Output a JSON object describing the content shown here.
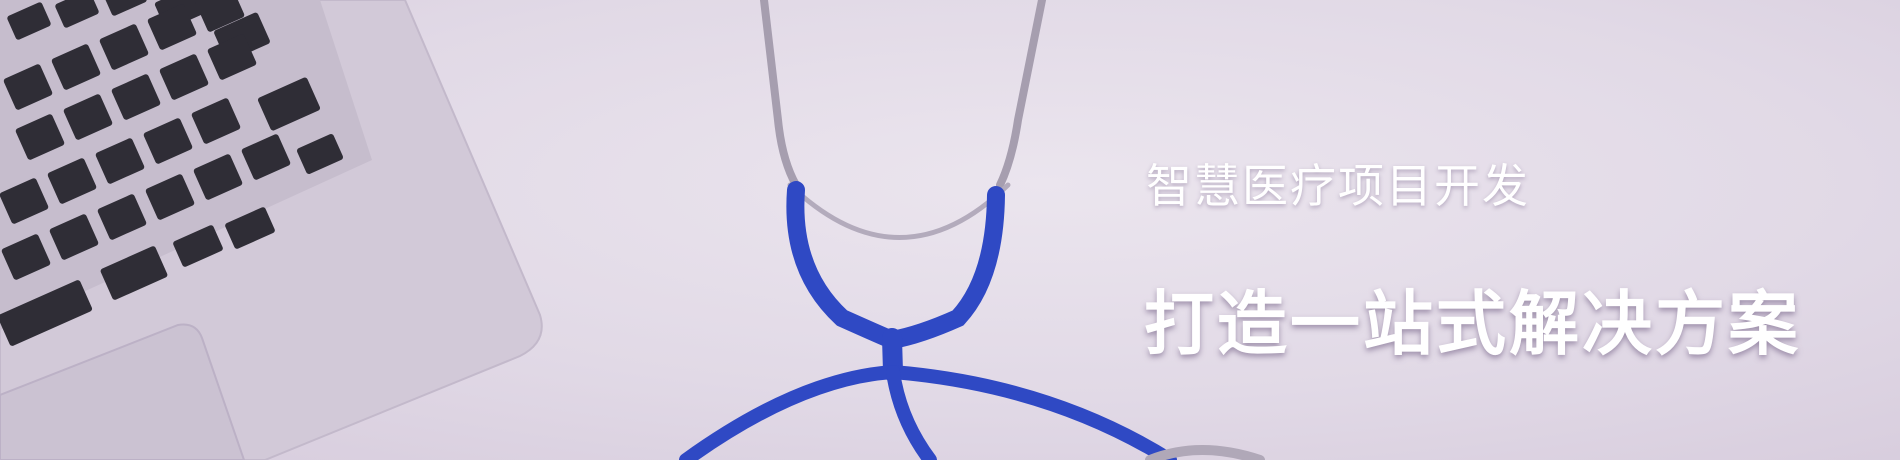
{
  "banner": {
    "headline": "智慧医疗项目开发",
    "tagline": "打造一站式解决方案"
  },
  "illustration": {
    "laptop": "laptop-keyboard-image",
    "stethoscope": "stethoscope-image",
    "tube_color": "#2f49c4"
  }
}
